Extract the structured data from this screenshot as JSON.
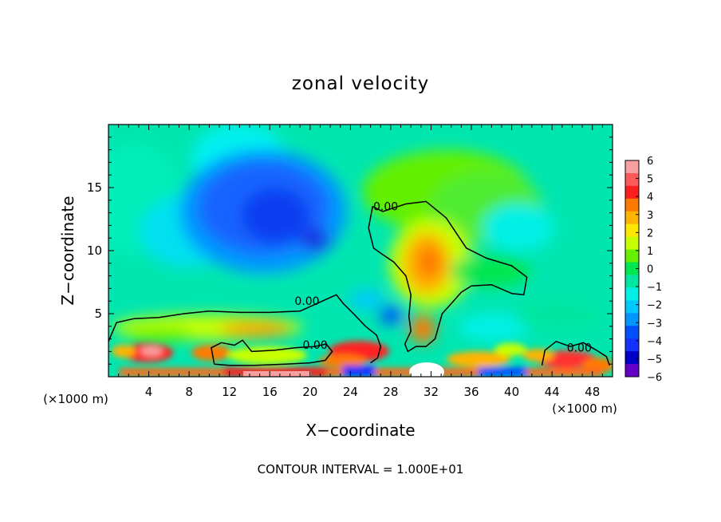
{
  "chart_data": {
    "type": "heatmap",
    "title": "zonal velocity",
    "xlabel": "X−coordinate",
    "ylabel": "Z−coordinate",
    "x_unit_left": "(×1000 m)",
    "x_unit_right": "(×1000 m)",
    "footer": "CONTOUR INTERVAL = 1.000E+01",
    "xlim": [
      0,
      50
    ],
    "ylim": [
      0,
      20
    ],
    "x_ticks": [
      4,
      8,
      12,
      16,
      20,
      24,
      28,
      32,
      36,
      40,
      44,
      48
    ],
    "x_tick_labels": [
      "4",
      "8",
      "12",
      "16",
      "20",
      "24",
      "28",
      "32",
      "36",
      "40",
      "44",
      "48"
    ],
    "y_ticks": [
      5,
      10,
      15
    ],
    "y_tick_labels": [
      "5",
      "10",
      "15"
    ],
    "colorbar": {
      "min": -6,
      "max": 6,
      "labels": [
        "6",
        "5",
        "4",
        "3",
        "2",
        "1",
        "0",
        "−1",
        "−2",
        "−3",
        "−4",
        "−5",
        "−6"
      ],
      "colors": [
        "#f8a0a0",
        "#ff5a5a",
        "#ff1e1e",
        "#ff7a00",
        "#ffb400",
        "#ffe600",
        "#c8ff00",
        "#64f000",
        "#00e650",
        "#00e6a0",
        "#00f0e6",
        "#00c8ff",
        "#0096ff",
        "#0050ff",
        "#1432ff",
        "#0000c8",
        "#6400c8"
      ]
    },
    "contours": [
      {
        "level": 0,
        "label": "0.00",
        "label_at": [
          27.5,
          13.2
        ],
        "path": [
          [
            25.8,
            11.8
          ],
          [
            26.2,
            13.5
          ],
          [
            27.2,
            13.1
          ],
          [
            29.5,
            13.7
          ],
          [
            31.5,
            13.9
          ],
          [
            33.5,
            12.6
          ],
          [
            35.5,
            10.2
          ],
          [
            37.5,
            9.4
          ],
          [
            40,
            8.8
          ],
          [
            41.5,
            7.9
          ],
          [
            41.2,
            6.5
          ],
          [
            40,
            6.6
          ],
          [
            38,
            7.3
          ],
          [
            36,
            7.2
          ],
          [
            35,
            6.7
          ],
          [
            34,
            5.8
          ],
          [
            33.1,
            5.0
          ],
          [
            32.4,
            3.0
          ],
          [
            31.5,
            2.4
          ],
          [
            30.5,
            2.4
          ],
          [
            29.7,
            2.0
          ],
          [
            29.4,
            2.6
          ],
          [
            30,
            3.6
          ],
          [
            29.8,
            4.8
          ],
          [
            30,
            6.5
          ],
          [
            29.5,
            8.0
          ],
          [
            28.3,
            9.1
          ],
          [
            27,
            9.8
          ],
          [
            26.3,
            10.2
          ],
          [
            25.8,
            11.8
          ]
        ]
      },
      {
        "level": 0,
        "label": "0.00",
        "label_at": [
          19.7,
          5.7
        ],
        "path": [
          [
            0,
            2.8
          ],
          [
            0.8,
            4.3
          ],
          [
            2.5,
            4.6
          ],
          [
            5,
            4.7
          ],
          [
            7.5,
            5.0
          ],
          [
            10,
            5.2
          ],
          [
            13,
            5.1
          ],
          [
            16,
            5.1
          ],
          [
            19,
            5.2
          ],
          [
            21.5,
            6.1
          ],
          [
            22.6,
            6.5
          ],
          [
            23.3,
            5.8
          ],
          [
            24.3,
            5.0
          ],
          [
            25.5,
            4.0
          ],
          [
            26.6,
            3.3
          ],
          [
            27,
            2.4
          ],
          [
            26.7,
            1.5
          ],
          [
            26,
            1.1
          ]
        ]
      },
      {
        "level": 0,
        "label": "0.00",
        "label_at": [
          20.5,
          2.2
        ],
        "path": [
          [
            10.5,
            1.0
          ],
          [
            10.2,
            2.3
          ],
          [
            11.2,
            2.7
          ],
          [
            12.5,
            2.5
          ],
          [
            13.3,
            2.9
          ],
          [
            14.2,
            2.0
          ],
          [
            16.5,
            2.1
          ],
          [
            18.5,
            2.3
          ],
          [
            20.5,
            2.4
          ],
          [
            21.6,
            2.6
          ],
          [
            22.2,
            2.0
          ],
          [
            21.5,
            1.3
          ],
          [
            20,
            1.1
          ],
          [
            17.5,
            1.0
          ],
          [
            14.5,
            0.9
          ],
          [
            12,
            0.9
          ],
          [
            10.5,
            1.0
          ]
        ]
      },
      {
        "level": 0,
        "label": "0.00",
        "label_at": [
          46.7,
          2.0
        ],
        "path": [
          [
            43,
            0.9
          ],
          [
            43.3,
            2.1
          ],
          [
            44.4,
            2.8
          ],
          [
            45.8,
            2.4
          ],
          [
            47.1,
            2.7
          ],
          [
            48.4,
            2.1
          ],
          [
            49.4,
            1.6
          ],
          [
            49.7,
            0.9
          ]
        ]
      }
    ]
  }
}
